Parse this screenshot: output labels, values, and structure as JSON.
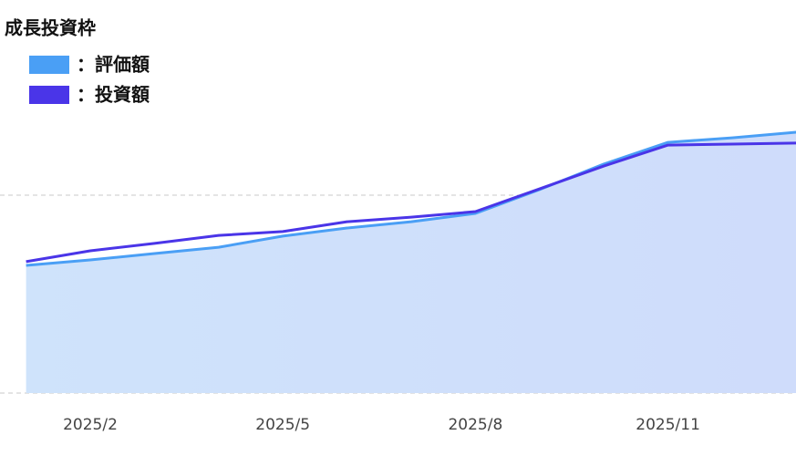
{
  "chart_data": {
    "type": "line",
    "title": "成長投資枠",
    "categories": [
      null,
      "2025/2",
      null,
      null,
      "2025/5",
      null,
      null,
      "2025/8",
      null,
      null,
      "2025/11",
      null,
      null
    ],
    "series": [
      {
        "name": "：評価額",
        "color": "#4a9ff5",
        "values": [
          0.645,
          0.673,
          0.705,
          0.737,
          0.793,
          0.834,
          0.866,
          0.908,
          1.028,
          1.157,
          1.267,
          1.29,
          1.318
        ],
        "area": true
      },
      {
        "name": "：投資額",
        "color": "#4a35e8",
        "values": [
          0.664,
          0.719,
          0.756,
          0.797,
          0.816,
          0.866,
          0.889,
          0.917,
          1.032,
          1.147,
          1.253,
          1.258,
          1.263
        ]
      }
    ],
    "ylim": [
      0,
      2
    ],
    "yticks": [
      0,
      1
    ],
    "grid": true
  }
}
